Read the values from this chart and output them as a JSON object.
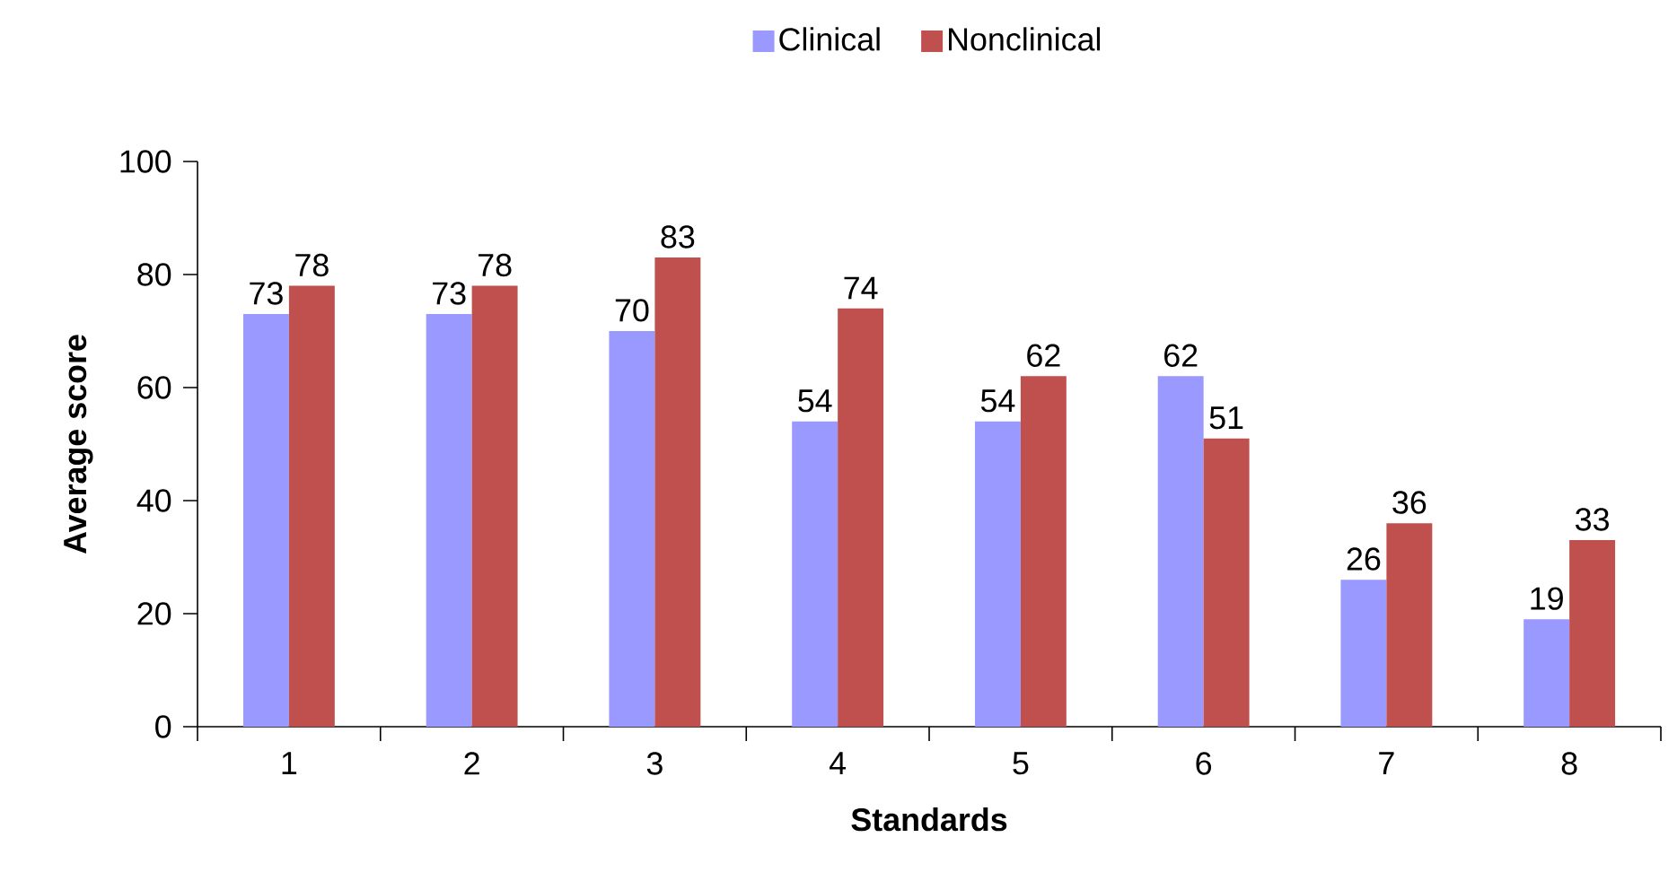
{
  "chart_data": {
    "type": "bar",
    "xlabel": "Standards",
    "ylabel": "Average score",
    "categories": [
      "1",
      "2",
      "3",
      "4",
      "5",
      "6",
      "7",
      "8"
    ],
    "series": [
      {
        "name": "Clinical",
        "color": "#9999ff",
        "values": [
          73,
          73,
          70,
          54,
          54,
          62,
          26,
          19
        ]
      },
      {
        "name": "Nonclinical",
        "color": "#c0504d",
        "values": [
          78,
          78,
          83,
          74,
          62,
          51,
          36,
          33
        ]
      }
    ],
    "ylim": [
      0,
      100
    ],
    "yticks": [
      0,
      20,
      40,
      60,
      80,
      100
    ],
    "grid": false,
    "legend": "top",
    "data_labels": true
  }
}
